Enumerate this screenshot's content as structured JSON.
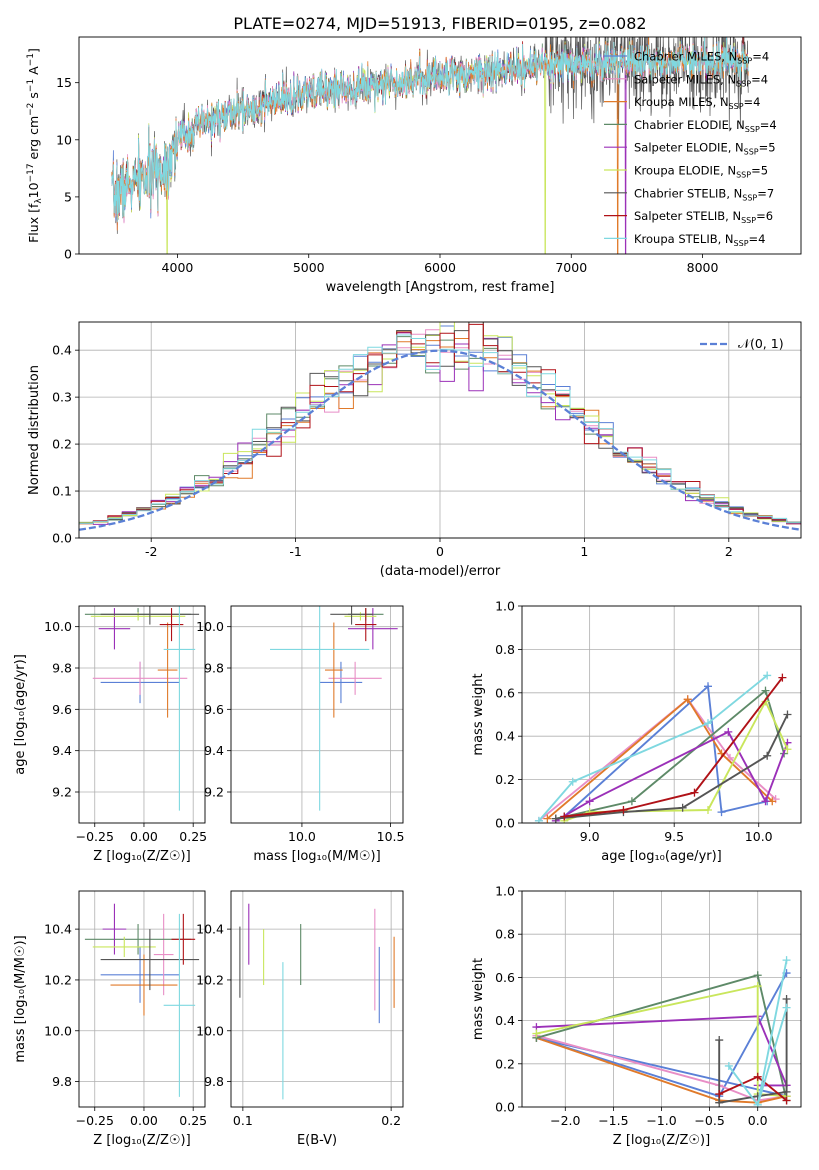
{
  "figure_title": "PLATE=0274, MJD=51913, FIBERID=0195, z=0.082",
  "colors": {
    "Chabrier MILES": "#5b80d6",
    "Salpeter MILES": "#e88ec6",
    "Kroupa MILES": "#e07a2a",
    "Chabrier ELODIE": "#5e8a68",
    "Salpeter ELODIE": "#9b30b8",
    "Kroupa ELODIE": "#c9e65c",
    "Chabrier STELIB": "#555555",
    "Salpeter STELIB": "#b01218",
    "Kroupa STELIB": "#7fd8e0"
  },
  "chart_data": [
    {
      "id": "spectrum",
      "type": "line",
      "title": "",
      "xlabel": "wavelength [Angstrom, rest frame]",
      "ylabel": "Flux [f",
      "ylabel_parts": [
        "Flux [f",
        "λ",
        "10",
        "−17",
        " erg cm",
        "−2",
        " s",
        "−1",
        " A",
        "−1",
        "]"
      ],
      "xlim": [
        3250,
        8750
      ],
      "ylim": [
        0,
        19
      ],
      "xticks": [
        4000,
        5000,
        6000,
        7000,
        8000
      ],
      "yticks": [
        0,
        5,
        10,
        15
      ],
      "grid": false,
      "legend_position": "right",
      "legend": [
        {
          "label": "Chabrier MILES, N",
          "sub": "SSP",
          "tail": "=4",
          "color": "#5b80d6"
        },
        {
          "label": "Salpeter MILES, N",
          "sub": "SSP",
          "tail": "=4",
          "color": "#e88ec6"
        },
        {
          "label": "Kroupa MILES, N",
          "sub": "SSP",
          "tail": "=4",
          "color": "#e07a2a"
        },
        {
          "label": "Chabrier ELODIE, N",
          "sub": "SSP",
          "tail": "=4",
          "color": "#5e8a68"
        },
        {
          "label": "Salpeter ELODIE, N",
          "sub": "SSP",
          "tail": "=5",
          "color": "#9b30b8"
        },
        {
          "label": "Kroupa ELODIE, N",
          "sub": "SSP",
          "tail": "=5",
          "color": "#c9e65c"
        },
        {
          "label": "Chabrier STELIB, N",
          "sub": "SSP",
          "tail": "=7",
          "color": "#555555"
        },
        {
          "label": "Salpeter STELIB, N",
          "sub": "SSP",
          "tail": "=6",
          "color": "#b01218"
        },
        {
          "label": "Kroupa STELIB, N",
          "sub": "SSP",
          "tail": "=4",
          "color": "#7fd8e0"
        }
      ],
      "continuum": {
        "x": [
          3500,
          3700,
          3900,
          4000,
          4200,
          4500,
          4800,
          5100,
          5400,
          5700,
          6000,
          6300,
          6600,
          6900,
          7200,
          7500,
          7800,
          8100,
          8300
        ],
        "y": [
          5.0,
          6.5,
          7.5,
          10.0,
          11.5,
          12.5,
          13.5,
          14.3,
          14.7,
          15.2,
          15.6,
          15.9,
          16.2,
          16.5,
          16.7,
          16.8,
          16.9,
          17.0,
          17.0
        ]
      }
    },
    {
      "id": "residuals",
      "type": "line",
      "xlabel": "(data-model)/error",
      "ylabel": "Normed distribution",
      "xlim": [
        -2.5,
        2.5
      ],
      "ylim": [
        0,
        0.46
      ],
      "xticks": [
        -2,
        -1,
        0,
        1,
        2
      ],
      "yticks": [
        0.0,
        0.1,
        0.2,
        0.3,
        0.4
      ],
      "grid": true,
      "legend_position": "top-right",
      "legend": [
        {
          "label": "𝒩(0, 1)",
          "color": "#5b80d6",
          "style": "dashed"
        }
      ],
      "hist_range": [
        -2.5,
        2.5
      ],
      "hist_bins": 50
    },
    {
      "id": "age-vs-Z",
      "type": "scatter",
      "xlabel": "Z [log₁₀(Z/Z☉)]",
      "ylabel": "age  [log₁₀(age/yr)]",
      "xlim": [
        -0.33,
        0.31
      ],
      "ylim": [
        9.05,
        10.1
      ],
      "xticks": [
        -0.25,
        0.0,
        0.25
      ],
      "xtick_labels": [
        "−0.25",
        "0.00",
        "0.25"
      ],
      "yticks": [
        9.2,
        9.4,
        9.6,
        9.8,
        10.0
      ],
      "grid": true,
      "points": [
        {
          "c": "Chabrier MILES",
          "x": -0.02,
          "xerr": 0.2,
          "y": 9.73,
          "yerr": 0.1
        },
        {
          "c": "Salpeter MILES",
          "x": -0.02,
          "xerr": 0.24,
          "y": 9.75,
          "yerr": 0.08
        },
        {
          "c": "Kroupa MILES",
          "x": 0.12,
          "xerr": 0.05,
          "y": 9.79,
          "yerr": 0.23
        },
        {
          "c": "Chabrier ELODIE",
          "x": -0.03,
          "xerr": 0.27,
          "y": 10.06,
          "yerr": 0.03
        },
        {
          "c": "Salpeter ELODIE",
          "x": -0.15,
          "xerr": 0.08,
          "y": 9.99,
          "yerr": 0.1
        },
        {
          "c": "Kroupa ELODIE",
          "x": -0.03,
          "xerr": 0.24,
          "y": 10.05,
          "yerr": 0.02
        },
        {
          "c": "Chabrier STELIB",
          "x": 0.03,
          "xerr": 0.25,
          "y": 10.06,
          "yerr": 0.05
        },
        {
          "c": "Salpeter STELIB",
          "x": 0.14,
          "xerr": 0.06,
          "y": 10.01,
          "yerr": 0.08
        },
        {
          "c": "Kroupa STELIB",
          "x": 0.18,
          "xerr": 0.08,
          "y": 9.89,
          "yerr": 0.78
        }
      ]
    },
    {
      "id": "age-vs-mass",
      "type": "scatter",
      "xlabel": "mass [log₁₀(M/M☉)]",
      "ylabel": "",
      "xlim": [
        9.6,
        10.57
      ],
      "ylim": [
        9.05,
        10.1
      ],
      "xticks": [
        10.0,
        10.5
      ],
      "xtick_labels": [
        "10.0",
        "10.5"
      ],
      "yticks": [
        9.2,
        9.4,
        9.6,
        9.8,
        10.0
      ],
      "grid": true,
      "points": [
        {
          "c": "Chabrier MILES",
          "x": 10.22,
          "xerr": 0.12,
          "y": 9.73,
          "yerr": 0.1
        },
        {
          "c": "Salpeter MILES",
          "x": 10.3,
          "xerr": 0.15,
          "y": 9.75,
          "yerr": 0.08
        },
        {
          "c": "Kroupa MILES",
          "x": 10.18,
          "xerr": 0.05,
          "y": 9.79,
          "yerr": 0.23
        },
        {
          "c": "Chabrier ELODIE",
          "x": 10.36,
          "xerr": 0.1,
          "y": 10.06,
          "yerr": 0.03
        },
        {
          "c": "Salpeter ELODIE",
          "x": 10.4,
          "xerr": 0.14,
          "y": 9.99,
          "yerr": 0.1
        },
        {
          "c": "Kroupa ELODIE",
          "x": 10.33,
          "xerr": 0.09,
          "y": 10.05,
          "yerr": 0.02
        },
        {
          "c": "Chabrier STELIB",
          "x": 10.28,
          "xerr": 0.12,
          "y": 10.06,
          "yerr": 0.05
        },
        {
          "c": "Salpeter STELIB",
          "x": 10.36,
          "xerr": 0.06,
          "y": 10.01,
          "yerr": 0.08
        },
        {
          "c": "Kroupa STELIB",
          "x": 10.1,
          "xerr": 0.28,
          "y": 9.89,
          "yerr": 0.78
        }
      ]
    },
    {
      "id": "weight-vs-age",
      "type": "line",
      "xlabel": "age  [log₁₀(age/yr)]",
      "ylabel": "mass weight",
      "xlim": [
        8.6,
        10.25
      ],
      "ylim": [
        0,
        1
      ],
      "xticks": [
        9.0,
        9.5,
        10.0
      ],
      "xtick_labels": [
        "9.0",
        "9.5",
        "10.0"
      ],
      "yticks": [
        0.0,
        0.2,
        0.4,
        0.6,
        0.8,
        1.0
      ],
      "grid": true,
      "series": [
        {
          "c": "Chabrier MILES",
          "x": [
            8.85,
            9.7,
            9.78,
            10.05
          ],
          "y": [
            0.03,
            0.63,
            0.05,
            0.1
          ]
        },
        {
          "c": "Salpeter MILES",
          "x": [
            8.7,
            9.58,
            9.83,
            10.1
          ],
          "y": [
            0.01,
            0.57,
            0.3,
            0.11
          ]
        },
        {
          "c": "Kroupa MILES",
          "x": [
            8.75,
            9.58,
            9.78,
            10.08
          ],
          "y": [
            0.02,
            0.57,
            0.32,
            0.1
          ]
        },
        {
          "c": "Chabrier ELODIE",
          "x": [
            8.8,
            9.25,
            10.04,
            10.15
          ],
          "y": [
            0.02,
            0.1,
            0.61,
            0.32
          ]
        },
        {
          "c": "Salpeter ELODIE",
          "x": [
            8.8,
            9.0,
            9.82,
            10.04,
            10.17
          ],
          "y": [
            0.01,
            0.1,
            0.42,
            0.1,
            0.37
          ]
        },
        {
          "c": "Kroupa ELODIE",
          "x": [
            8.85,
            9.0,
            9.7,
            10.04,
            10.17
          ],
          "y": [
            0.01,
            0.05,
            0.06,
            0.56,
            0.34
          ]
        },
        {
          "c": "Chabrier STELIB",
          "x": [
            8.8,
            9.2,
            9.55,
            10.05,
            10.17
          ],
          "y": [
            0.02,
            0.05,
            0.07,
            0.31,
            0.5
          ]
        },
        {
          "c": "Salpeter STELIB",
          "x": [
            8.85,
            9.2,
            9.62,
            10.14
          ],
          "y": [
            0.03,
            0.06,
            0.14,
            0.67
          ]
        },
        {
          "c": "Kroupa STELIB",
          "x": [
            8.7,
            8.9,
            9.7,
            10.05
          ],
          "y": [
            0.01,
            0.19,
            0.46,
            0.68
          ]
        }
      ]
    },
    {
      "id": "mass-vs-Z",
      "type": "scatter",
      "xlabel": "Z [log₁₀(Z/Z☉)]",
      "ylabel": "mass [log₁₀(M/M☉)]",
      "xlim": [
        -0.33,
        0.31
      ],
      "ylim": [
        9.7,
        10.55
      ],
      "xticks": [
        -0.25,
        0.0,
        0.25
      ],
      "xtick_labels": [
        "−0.25",
        "0.00",
        "0.25"
      ],
      "yticks": [
        9.8,
        10.0,
        10.2,
        10.4
      ],
      "grid": true,
      "points": [
        {
          "c": "Chabrier MILES",
          "x": -0.02,
          "xerr": 0.2,
          "y": 10.22,
          "yerr": 0.11
        },
        {
          "c": "Salpeter MILES",
          "x": 0.1,
          "xerr": 0.05,
          "y": 10.3,
          "yerr": 0.16
        },
        {
          "c": "Kroupa MILES",
          "x": 0.0,
          "xerr": 0.17,
          "y": 10.18,
          "yerr": 0.12
        },
        {
          "c": "Chabrier ELODIE",
          "x": -0.03,
          "xerr": 0.27,
          "y": 10.36,
          "yerr": 0.06
        },
        {
          "c": "Salpeter ELODIE",
          "x": -0.15,
          "xerr": 0.06,
          "y": 10.4,
          "yerr": 0.1
        },
        {
          "c": "Kroupa ELODIE",
          "x": -0.1,
          "xerr": 0.16,
          "y": 10.33,
          "yerr": 0.04
        },
        {
          "c": "Chabrier STELIB",
          "x": 0.03,
          "xerr": 0.25,
          "y": 10.28,
          "yerr": 0.12
        },
        {
          "c": "Salpeter STELIB",
          "x": 0.2,
          "xerr": 0.06,
          "y": 10.36,
          "yerr": 0.1
        },
        {
          "c": "Kroupa STELIB",
          "x": 0.18,
          "xerr": 0.08,
          "y": 10.1,
          "yerr": 0.36
        }
      ]
    },
    {
      "id": "mass-vs-EBV",
      "type": "scatter",
      "xlabel": "E(B-V)",
      "ylabel": "",
      "xlim": [
        0.092,
        0.208
      ],
      "ylim": [
        9.7,
        10.55
      ],
      "xticks": [
        0.1,
        0.2
      ],
      "xtick_labels": [
        "0.1",
        "0.2"
      ],
      "yticks": [
        9.8,
        10.0,
        10.2,
        10.4
      ],
      "grid": true,
      "points": [
        {
          "c": "Salpeter ELODIE",
          "x": 0.104,
          "xerr": 0,
          "y": 10.38,
          "yerr": 0.12
        },
        {
          "c": "Chabrier STELIB",
          "x": 0.098,
          "xerr": 0,
          "y": 10.27,
          "yerr": 0.14
        },
        {
          "c": "Kroupa ELODIE",
          "x": 0.114,
          "xerr": 0,
          "y": 10.29,
          "yerr": 0.11
        },
        {
          "c": "Kroupa STELIB",
          "x": 0.127,
          "xerr": 0,
          "y": 10.0,
          "yerr": 0.27
        },
        {
          "c": "Chabrier ELODIE",
          "x": 0.139,
          "xerr": 0,
          "y": 10.3,
          "yerr": 0.12
        },
        {
          "c": "Salpeter MILES",
          "x": 0.189,
          "xerr": 0,
          "y": 10.28,
          "yerr": 0.2
        },
        {
          "c": "Chabrier MILES",
          "x": 0.192,
          "xerr": 0,
          "y": 10.18,
          "yerr": 0.15
        },
        {
          "c": "Kroupa MILES",
          "x": 0.202,
          "xerr": 0,
          "y": 10.23,
          "yerr": 0.14
        }
      ]
    },
    {
      "id": "weight-vs-Z",
      "type": "line",
      "xlabel": "Z [log₁₀(Z/Z☉)]",
      "ylabel": "mass weight",
      "xlim": [
        -2.45,
        0.45
      ],
      "ylim": [
        0,
        1
      ],
      "xticks": [
        -2.0,
        -1.5,
        -1.0,
        -0.5,
        0.0
      ],
      "xtick_labels": [
        "−2.0",
        "−1.5",
        "−1.0",
        "−0.5",
        "0.0"
      ],
      "yticks": [
        0.0,
        0.2,
        0.4,
        0.6,
        0.8,
        1.0
      ],
      "grid": true,
      "series": [
        {
          "c": "Chabrier MILES",
          "x": [
            0.3,
            -0.4,
            -2.3,
            0.3
          ],
          "y": [
            0.62,
            0.05,
            0.32,
            0.05
          ]
        },
        {
          "c": "Salpeter MILES",
          "x": [
            -2.3,
            -0.4,
            0.0,
            0.3
          ],
          "y": [
            0.33,
            0.1,
            0.03,
            0.05
          ]
        },
        {
          "c": "Kroupa MILES",
          "x": [
            -2.3,
            -0.4,
            0.0,
            0.3
          ],
          "y": [
            0.32,
            0.03,
            0.02,
            0.05
          ]
        },
        {
          "c": "Chabrier ELODIE",
          "x": [
            -2.3,
            0.0,
            0.3
          ],
          "y": [
            0.32,
            0.61,
            0.03
          ]
        },
        {
          "c": "Salpeter ELODIE",
          "x": [
            -2.3,
            0.0,
            0.3,
            0.0,
            0.3
          ],
          "y": [
            0.37,
            0.42,
            0.1,
            0.1,
            0.1
          ]
        },
        {
          "c": "Kroupa ELODIE",
          "x": [
            -2.3,
            0.0,
            0.0,
            0.3
          ],
          "y": [
            0.34,
            0.56,
            0.06,
            0.05
          ]
        },
        {
          "c": "Chabrier STELIB",
          "x": [
            -0.4,
            -0.4,
            0.0,
            0.3,
            0.3
          ],
          "y": [
            0.31,
            0.02,
            0.05,
            0.07,
            0.5
          ]
        },
        {
          "c": "Salpeter STELIB",
          "x": [
            -0.4,
            0.0,
            0.3
          ],
          "y": [
            0.06,
            0.14,
            0.03
          ]
        },
        {
          "c": "Kroupa STELIB",
          "x": [
            0.3,
            0.0,
            -0.3,
            0.0,
            0.3
          ],
          "y": [
            0.68,
            0.01,
            0.19,
            0.01,
            0.46
          ]
        }
      ]
    }
  ]
}
